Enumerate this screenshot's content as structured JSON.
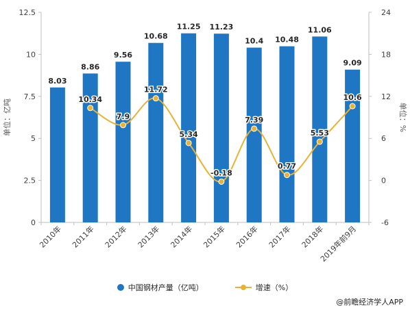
{
  "chart_data": {
    "type": "bar",
    "categories": [
      "2010年",
      "2011年",
      "2012年",
      "2013年",
      "2014年",
      "2015年",
      "2016年",
      "2017年",
      "2018年",
      "2019年前9月"
    ],
    "series": [
      {
        "name": "中国钢材产量（亿吨）",
        "type": "bar",
        "axis": "left",
        "values": [
          8.03,
          8.86,
          9.56,
          10.68,
          11.25,
          11.23,
          10.4,
          10.48,
          11.06,
          9.09
        ],
        "color": "#1f77c4"
      },
      {
        "name": "增速（%）",
        "type": "line",
        "axis": "right",
        "values": [
          null,
          10.34,
          7.9,
          11.72,
          5.34,
          -0.18,
          7.39,
          0.77,
          5.53,
          10.6
        ],
        "color": "#e8b234"
      }
    ],
    "ylabel": "单位：亿吨",
    "y2label": "单位：%",
    "ylim": [
      0,
      12.5
    ],
    "y2lim": [
      -6,
      24
    ],
    "yticks": [
      "0",
      "2.5",
      "5",
      "7.5",
      "10",
      "12.5"
    ],
    "y2ticks": [
      "-6",
      "0",
      "6",
      "12",
      "18",
      "24"
    ],
    "legend_position": "bottom",
    "grid": false
  },
  "source": "@前瞻经济学人APP"
}
